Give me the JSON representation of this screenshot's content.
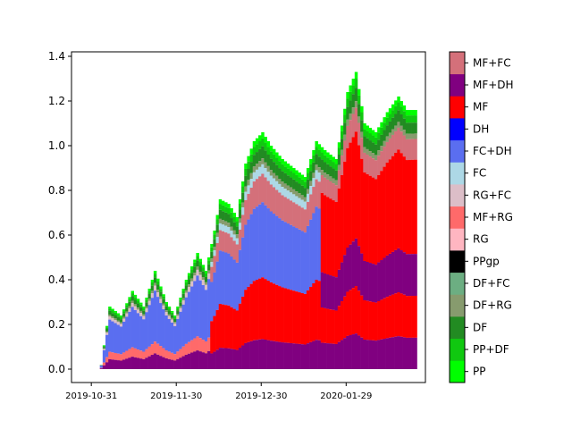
{
  "chart_data": {
    "type": "area",
    "title": "",
    "xlabel": "",
    "ylabel": "",
    "x_ticks": [
      "2019-10-31",
      "2019-11-30",
      "2019-12-30",
      "2020-01-29"
    ],
    "x_range": [
      "2019-10-24",
      "2020-02-26"
    ],
    "y_ticks": [
      "0.0",
      "0.2",
      "0.4",
      "0.6",
      "0.8",
      "1.0",
      "1.2",
      "1.4"
    ],
    "ylim": [
      -0.06,
      1.42
    ],
    "grid": false,
    "legend": "colorbar-right",
    "legend_order": "bottom-to-top",
    "data_x_start": "2019-11-03",
    "data_x_end": "2020-02-22",
    "total_height": {
      "x": [
        "2019-11-03",
        "2019-11-06",
        "2019-11-10",
        "2019-11-14",
        "2019-11-18",
        "2019-11-22",
        "2019-11-26",
        "2019-11-29",
        "2019-12-03",
        "2019-12-07",
        "2019-12-10",
        "2019-12-13",
        "2019-12-15",
        "2019-12-18",
        "2019-12-21",
        "2019-12-24",
        "2019-12-27",
        "2019-12-30",
        "2020-01-02",
        "2020-01-06",
        "2020-01-10",
        "2020-01-14",
        "2020-01-18",
        "2020-01-21",
        "2020-01-25",
        "2020-01-29",
        "2020-02-01",
        "2020-02-04",
        "2020-02-08",
        "2020-02-12",
        "2020-02-16",
        "2020-02-19",
        "2020-02-22"
      ],
      "y": [
        0.02,
        0.28,
        0.24,
        0.35,
        0.28,
        0.44,
        0.3,
        0.24,
        0.4,
        0.52,
        0.44,
        0.62,
        0.76,
        0.74,
        0.68,
        0.92,
        1.02,
        1.06,
        1.0,
        0.94,
        0.9,
        0.86,
        1.02,
        0.98,
        0.94,
        1.24,
        1.33,
        1.1,
        1.06,
        1.15,
        1.22,
        1.16,
        1.16
      ]
    },
    "classes": [
      {
        "name": "PP",
        "color": "#00ff00"
      },
      {
        "name": "PP+DF",
        "color": "#10c810"
      },
      {
        "name": "DF",
        "color": "#228b22"
      },
      {
        "name": "DF+RG",
        "color": "#879b6e"
      },
      {
        "name": "DF+FC",
        "color": "#6cae82"
      },
      {
        "name": "PPgp",
        "color": "#000000"
      },
      {
        "name": "RG",
        "color": "#ffb6c1"
      },
      {
        "name": "MF+RG",
        "color": "#ff6a6a"
      },
      {
        "name": "RG+FC",
        "color": "#dcbec8"
      },
      {
        "name": "FC",
        "color": "#add8e6"
      },
      {
        "name": "FC+DH",
        "color": "#5a6ef0"
      },
      {
        "name": "DH",
        "color": "#0000ff"
      },
      {
        "name": "MF",
        "color": "#ff0000"
      },
      {
        "name": "MF+DH",
        "color": "#800080"
      },
      {
        "name": "MF+FC",
        "color": "#d4707a"
      }
    ]
  }
}
